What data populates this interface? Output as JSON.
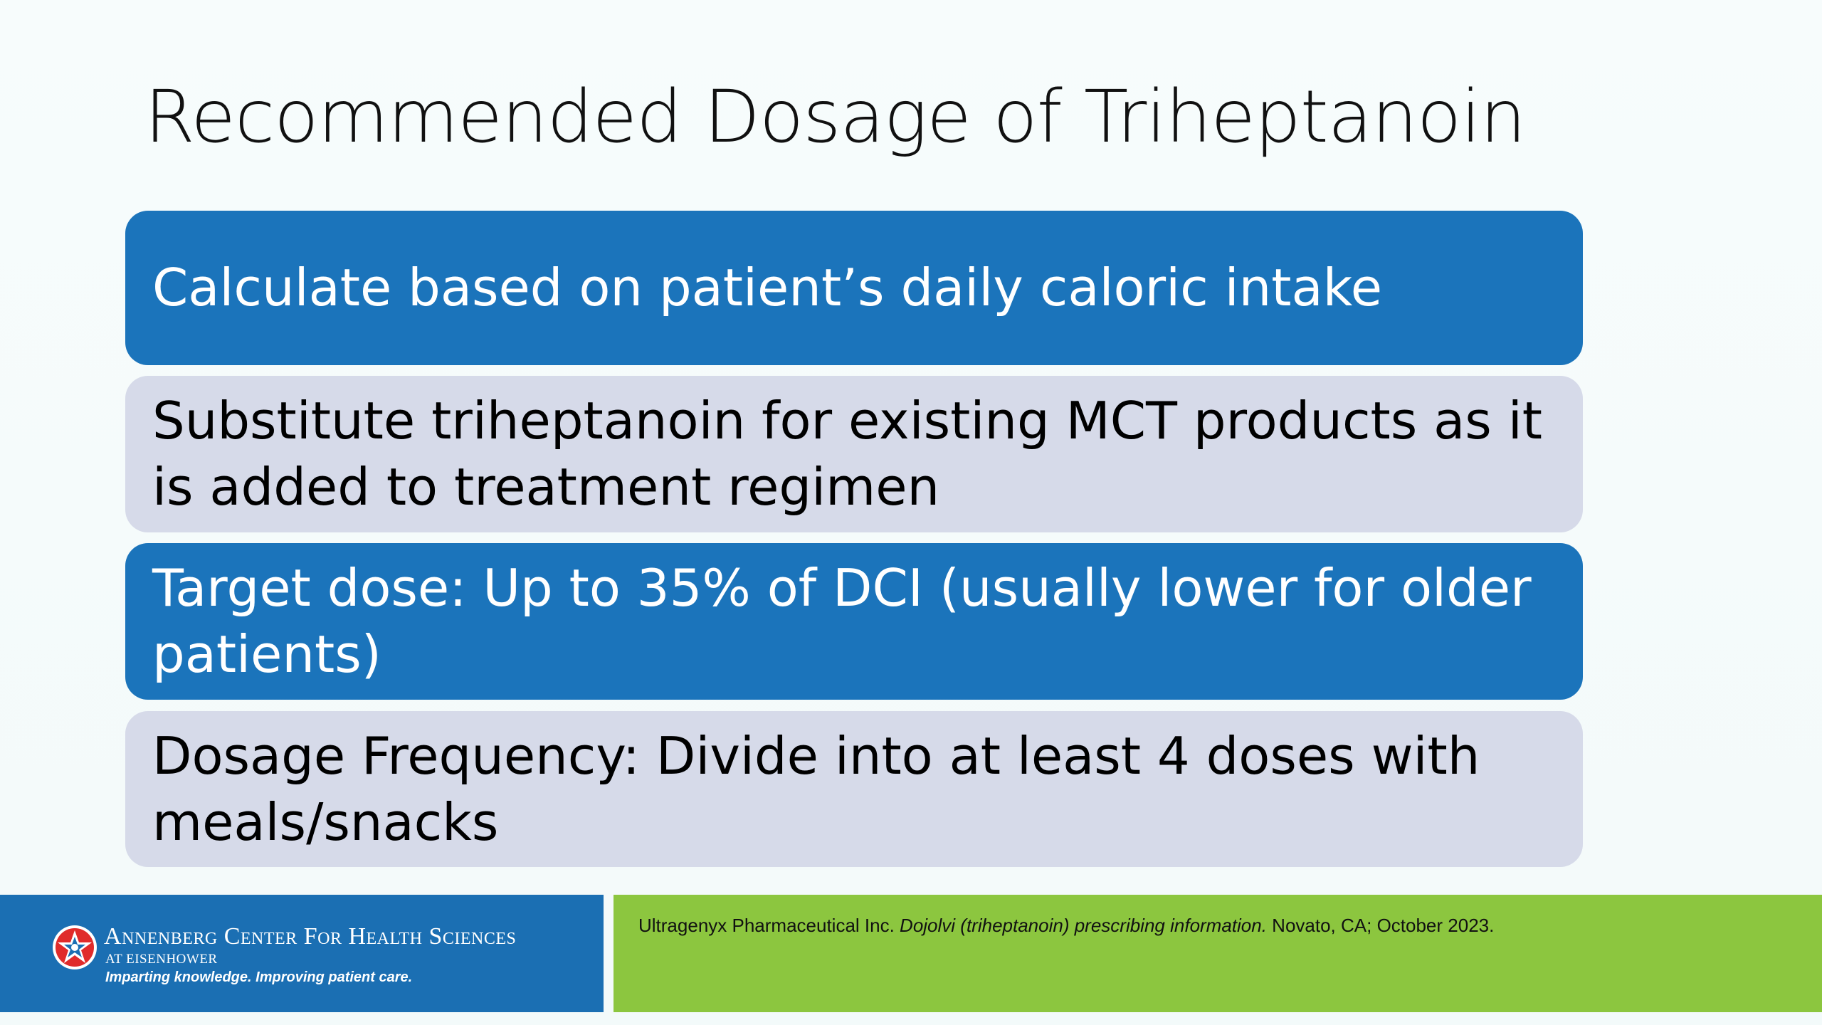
{
  "slide": {
    "title": "Recommended Dosage of Triheptanoin",
    "items": [
      "Calculate based on patient’s daily caloric intake",
      "Substitute triheptanoin for existing MCT products as it is added to treatment regimen",
      "Target dose: Up to 35% of DCI (usually lower for older patients)",
      "Dosage Frequency: Divide into at least 4 doses with meals/snacks"
    ]
  },
  "footer": {
    "logo_name": "Annenberg Center For Health Sciences",
    "logo_sub": "AT EISENHOWER",
    "logo_tagline": "Imparting knowledge. Improving patient care.",
    "citation_pre": "Ultragenyx Pharmaceutical Inc. ",
    "citation_italic": "Dojolvi (triheptanoin) prescribing information.",
    "citation_post": " Novato, CA; October 2023."
  },
  "colors": {
    "blue_box": "#1b74bb",
    "gray_box": "#d6dae9",
    "footer_blue": "#1b6fb3",
    "footer_green": "#8cc63f"
  },
  "icons": {
    "logo": "star-logo-icon"
  }
}
